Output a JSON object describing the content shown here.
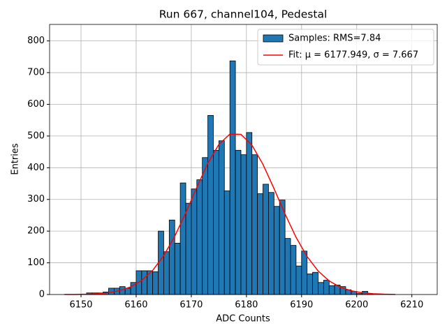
{
  "chart_data": {
    "type": "histogram",
    "title": "Run 667, channel104, Pedestal",
    "xlabel": "ADC Counts",
    "ylabel": "Entries",
    "bins": [
      6151,
      6152,
      6153,
      6154,
      6155,
      6156,
      6157,
      6158,
      6159,
      6160,
      6161,
      6162,
      6163,
      6164,
      6165,
      6166,
      6167,
      6168,
      6169,
      6170,
      6171,
      6172,
      6173,
      6174,
      6175,
      6176,
      6177,
      6178,
      6179,
      6180,
      6181,
      6182,
      6183,
      6184,
      6185,
      6186,
      6187,
      6188,
      6189,
      6190,
      6191,
      6192,
      6193,
      6194,
      6195,
      6196,
      6197,
      6198,
      6199,
      6200,
      6201,
      6202,
      6203
    ],
    "series": [
      {
        "name": "Samples: RMS=7.84",
        "type": "histogram",
        "color": "#1f77b4",
        "edgecolor": "#000000",
        "values": [
          5,
          5,
          5,
          8,
          20,
          20,
          25,
          20,
          38,
          75,
          75,
          75,
          72,
          200,
          135,
          235,
          162,
          352,
          288,
          333,
          362,
          432,
          565,
          455,
          485,
          327,
          737,
          455,
          441,
          511,
          441,
          318,
          348,
          322,
          278,
          298,
          177,
          155,
          90,
          137,
          65,
          70,
          38,
          45,
          28,
          30,
          25,
          15,
          10,
          3,
          10,
          2
        ]
      },
      {
        "name": "Fit: μ = 6177.949, σ = 7.667",
        "type": "line",
        "color": "#ff0000",
        "x": [
          6147,
          6149,
          6151,
          6153,
          6155,
          6157,
          6159,
          6161,
          6163,
          6165,
          6167,
          6169,
          6171,
          6173,
          6175,
          6177,
          6179,
          6181,
          6183,
          6185,
          6187,
          6189,
          6191,
          6193,
          6195,
          6197,
          6199,
          6201,
          6203,
          6205,
          6207
        ],
        "values": [
          0.2,
          0.4,
          1.1,
          2.6,
          5.8,
          12.2,
          24.1,
          44.3,
          76.2,
          122.5,
          184.0,
          258.1,
          338.2,
          414.1,
          473.6,
          506.1,
          505.2,
          471.2,
          410.5,
          334.1,
          254.1,
          180.5,
          119.8,
          74.3,
          43.0,
          23.3,
          11.8,
          5.6,
          2.5,
          1.0,
          0.4
        ]
      }
    ],
    "xlim": [
      6144.3,
      6214.6
    ],
    "ylim": [
      0,
      852
    ],
    "xticks": [
      6150,
      6160,
      6170,
      6180,
      6190,
      6200,
      6210
    ],
    "yticks": [
      0,
      100,
      200,
      300,
      400,
      500,
      600,
      700,
      800
    ],
    "grid": true,
    "legend": "upper right"
  }
}
